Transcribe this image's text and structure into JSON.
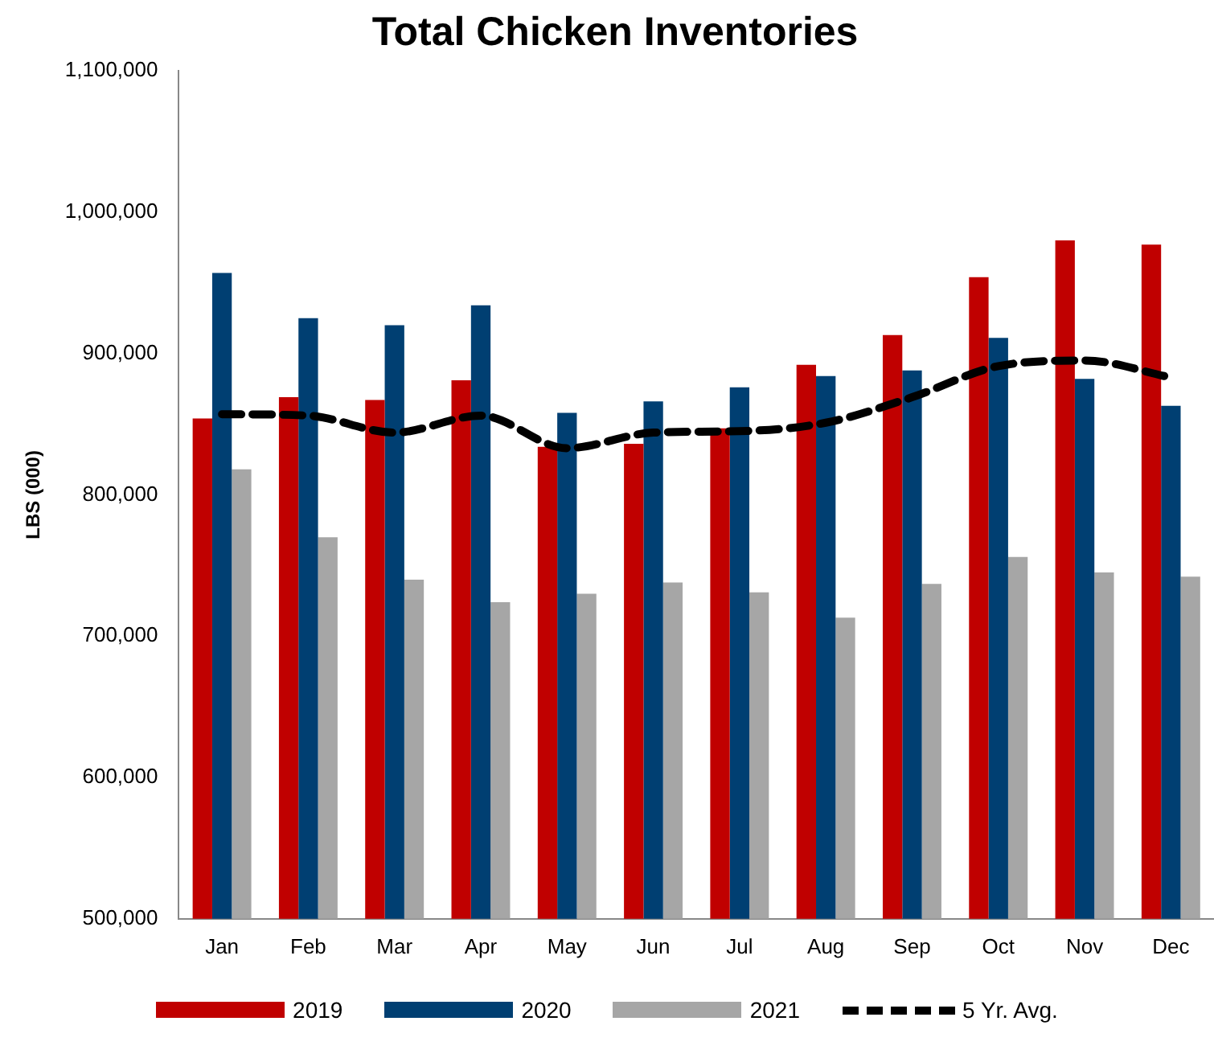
{
  "chart_data": {
    "type": "bar",
    "title": "Total Chicken Inventories",
    "ylabel": "LBS (000)",
    "categories": [
      "Jan",
      "Feb",
      "Mar",
      "Apr",
      "May",
      "Jun",
      "Jul",
      "Aug",
      "Sep",
      "Oct",
      "Nov",
      "Dec"
    ],
    "series": [
      {
        "name": "2019",
        "color": "#c00000",
        "values": [
          854000,
          869000,
          867000,
          881000,
          834000,
          836000,
          847000,
          892000,
          913000,
          954000,
          980000,
          977000
        ]
      },
      {
        "name": "2020",
        "color": "#003f72",
        "values": [
          957000,
          925000,
          920000,
          934000,
          858000,
          866000,
          876000,
          884000,
          888000,
          911000,
          882000,
          863000
        ]
      },
      {
        "name": "2021",
        "color": "#a6a6a6",
        "values": [
          818000,
          770000,
          740000,
          724000,
          730000,
          738000,
          731000,
          713000,
          737000,
          756000,
          745000,
          742000
        ]
      },
      {
        "name": "5 Yr. Avg.",
        "type": "line",
        "color": "#000000",
        "line_style": "dashed",
        "marker": "none",
        "values": [
          857000,
          856000,
          844000,
          856000,
          833000,
          844000,
          845000,
          851000,
          869000,
          891000,
          895000,
          883000
        ]
      }
    ],
    "ylim": [
      500000,
      1100000
    ],
    "yticks": [
      {
        "value": 500000,
        "label": "500,000"
      },
      {
        "value": 600000,
        "label": "600,000"
      },
      {
        "value": 700000,
        "label": "700,000"
      },
      {
        "value": 800000,
        "label": "800,000"
      },
      {
        "value": 900000,
        "label": "900,000"
      },
      {
        "value": 1000000,
        "label": "1,000,000"
      },
      {
        "value": 1100000,
        "label": "1,100,000"
      }
    ],
    "grid": false,
    "legend": "bottom"
  }
}
